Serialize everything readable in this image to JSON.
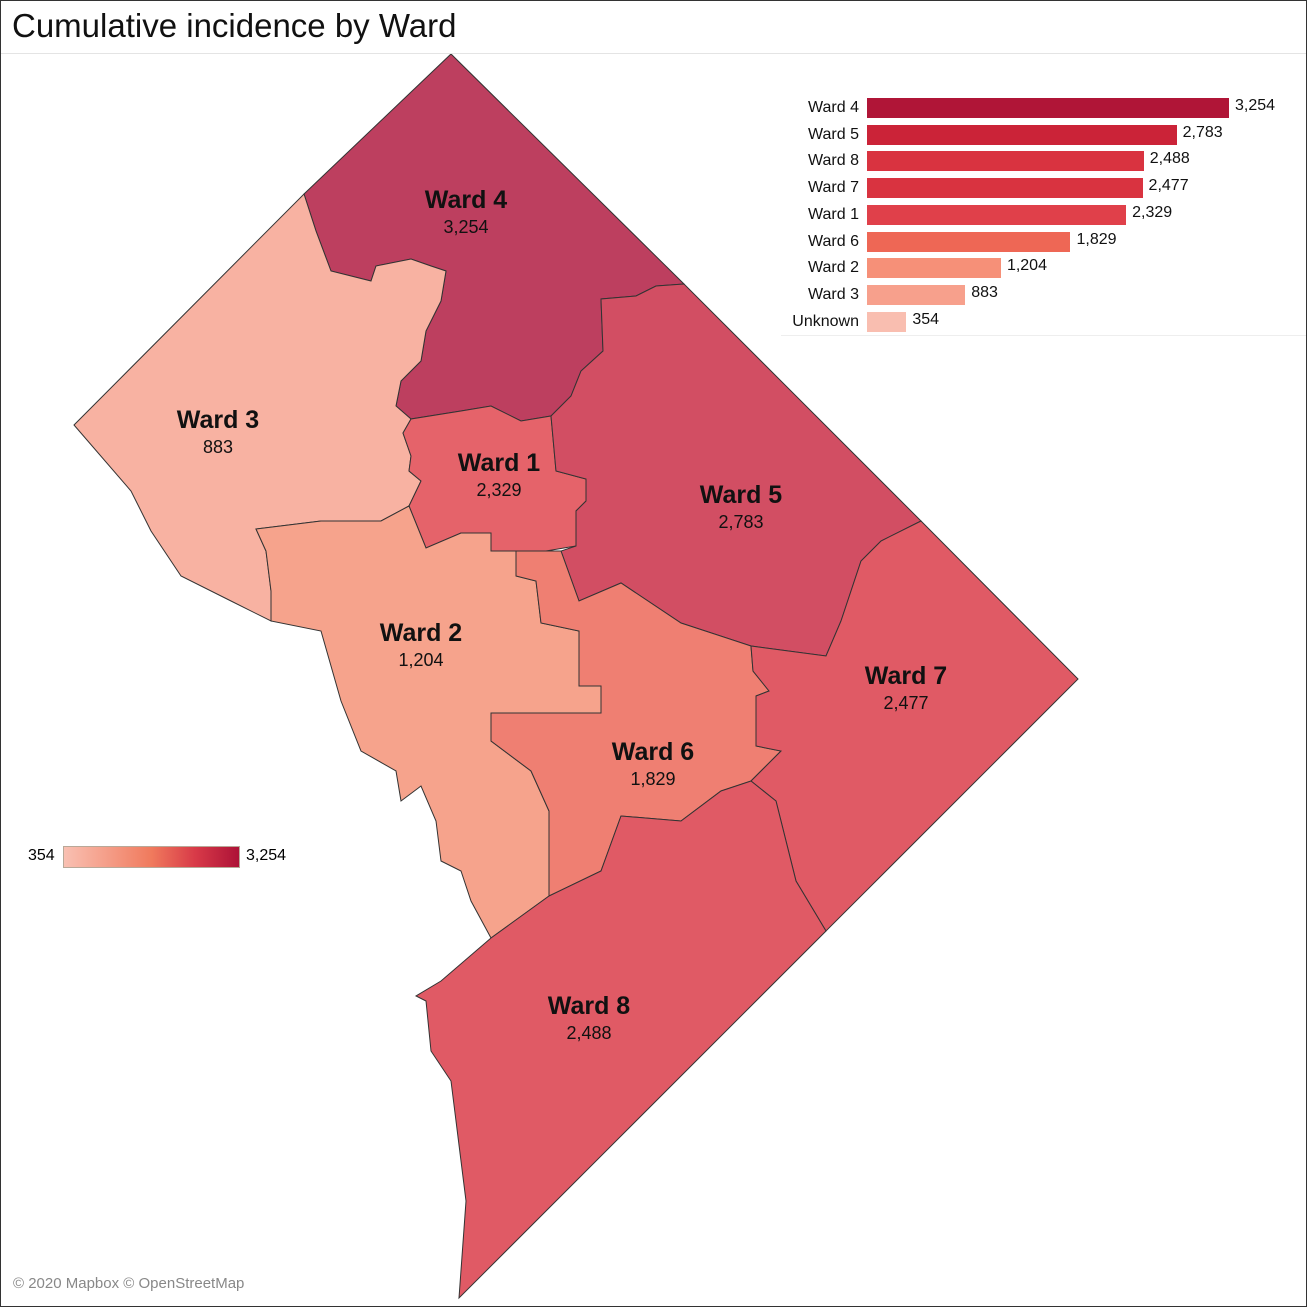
{
  "title": "Cumulative incidence by Ward",
  "attribution": "© 2020 Mapbox © OpenStreetMap",
  "legend": {
    "min": "354",
    "max": "3,254",
    "colors": [
      "#f9c0b2",
      "#f07a5d",
      "#d83a48",
      "#ad1237"
    ]
  },
  "wards": [
    {
      "id": "ward4",
      "label": "Ward 4",
      "value": "3,254",
      "color": "#bd3f5f"
    },
    {
      "id": "ward3",
      "label": "Ward 3",
      "value": "883",
      "color": "#f8b2a2"
    },
    {
      "id": "ward1",
      "label": "Ward 1",
      "value": "2,329",
      "color": "#e5636a"
    },
    {
      "id": "ward5",
      "label": "Ward 5",
      "value": "2,783",
      "color": "#d24e63"
    },
    {
      "id": "ward2",
      "label": "Ward 2",
      "value": "1,204",
      "color": "#f6a38c"
    },
    {
      "id": "ward6",
      "label": "Ward 6",
      "value": "1,829",
      "color": "#ef7f72"
    },
    {
      "id": "ward7",
      "label": "Ward 7",
      "value": "2,477",
      "color": "#e05a65"
    },
    {
      "id": "ward8",
      "label": "Ward 8",
      "value": "2,488",
      "color": "#e05a65"
    }
  ],
  "chart_data": {
    "type": "bar",
    "orientation": "horizontal",
    "categories": [
      "Ward 4",
      "Ward 5",
      "Ward 8",
      "Ward 7",
      "Ward 1",
      "Ward 6",
      "Ward 2",
      "Ward 3",
      "Unknown"
    ],
    "values": [
      3254,
      2783,
      2488,
      2477,
      2329,
      1829,
      1204,
      883,
      354
    ],
    "value_labels": [
      "3,254",
      "2,783",
      "2,488",
      "2,477",
      "2,329",
      "1,829",
      "1,204",
      "883",
      "354"
    ],
    "colors": [
      "#b01537",
      "#cb2338",
      "#d93340",
      "#d93340",
      "#e0404a",
      "#ee6755",
      "#f69078",
      "#f7a08c",
      "#f9beb0"
    ]
  }
}
